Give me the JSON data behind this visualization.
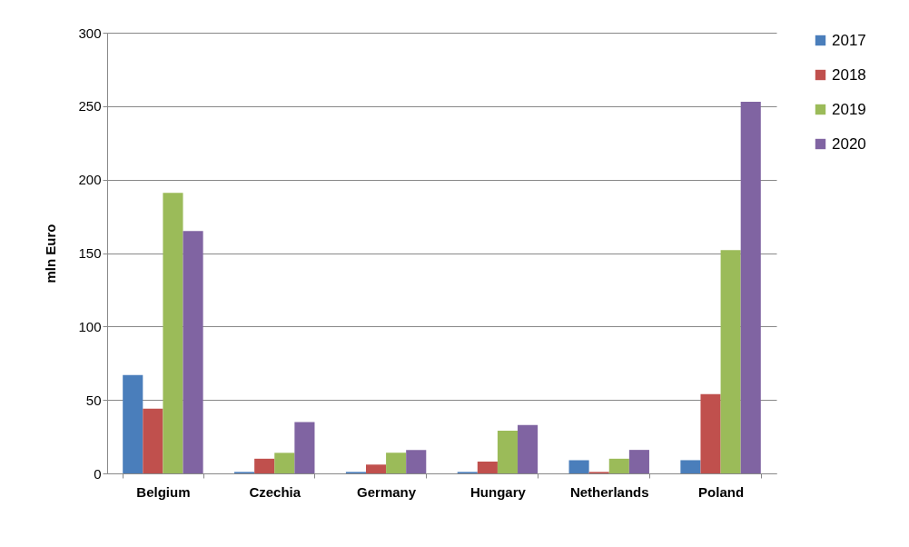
{
  "chart_data": {
    "type": "bar",
    "ylabel": "mln Euro",
    "categories": [
      "Belgium",
      "Czechia",
      "Germany",
      "Hungary",
      "Netherlands",
      "Poland"
    ],
    "series": [
      {
        "name": "2017",
        "color": "#4a7ebb",
        "values": [
          67,
          1,
          1,
          1,
          9,
          9
        ]
      },
      {
        "name": "2018",
        "color": "#c0504d",
        "values": [
          44,
          10,
          6,
          8,
          1,
          54
        ]
      },
      {
        "name": "2019",
        "color": "#9bbb59",
        "values": [
          191,
          14,
          14,
          29,
          10,
          152
        ]
      },
      {
        "name": "2020",
        "color": "#8064a2",
        "values": [
          165,
          35,
          16,
          33,
          16,
          253
        ]
      }
    ],
    "ylim": [
      0,
      300
    ],
    "yticks": [
      0,
      50,
      100,
      150,
      200,
      250,
      300
    ],
    "grid": "y",
    "legend": "right"
  }
}
